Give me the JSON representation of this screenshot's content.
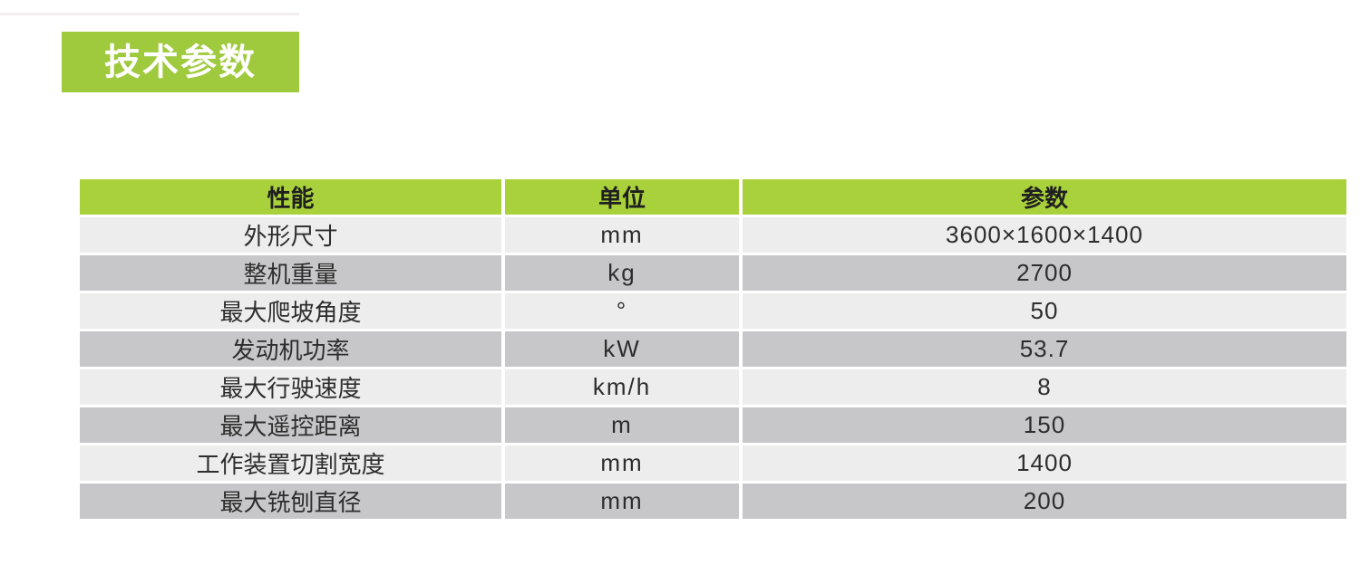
{
  "section": {
    "title": "技术参数"
  },
  "colors": {
    "banner_green": "#9fca3e",
    "header_green": "#a9d13c",
    "row_light_gray": "#ededee",
    "row_dark_gray": "#c7c7c9",
    "title_text": "#ffffff",
    "body_text": "#2d2d2d"
  },
  "table": {
    "headers": [
      "性能",
      "单位",
      "参数"
    ],
    "rows": [
      {
        "property": "外形尺寸",
        "unit": "mm",
        "value": "3600×1600×1400"
      },
      {
        "property": "整机重量",
        "unit": "kg",
        "value": "2700"
      },
      {
        "property": "最大爬坡角度",
        "unit": "°",
        "value": "50"
      },
      {
        "property": "发动机功率",
        "unit": "kW",
        "value": "53.7"
      },
      {
        "property": "最大行驶速度",
        "unit": "km/h",
        "value": "8"
      },
      {
        "property": "最大遥控距离",
        "unit": "m",
        "value": "150"
      },
      {
        "property": "工作装置切割宽度",
        "unit": "mm",
        "value": "1400"
      },
      {
        "property": "最大铣刨直径",
        "unit": "mm",
        "value": "200"
      }
    ]
  }
}
